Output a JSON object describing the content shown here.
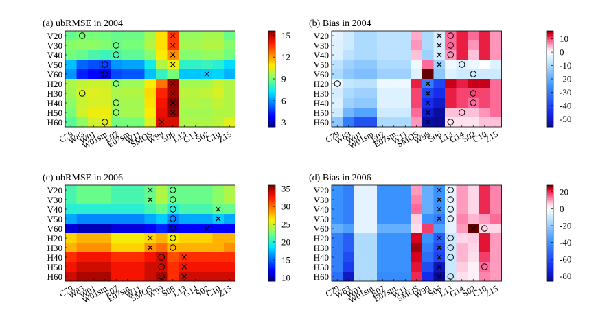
{
  "figure": {
    "rows": [
      "V20",
      "V30",
      "V40",
      "V50",
      "V60",
      "H20",
      "H30",
      "H40",
      "H50",
      "H60"
    ],
    "columns": [
      "C79",
      "W83",
      "W01",
      "W01sm",
      "E07",
      "E07sm",
      "W11",
      "SMOS",
      "W99",
      "S06",
      "L13",
      "G14",
      "S02",
      "C10",
      "Z15"
    ]
  },
  "chart_data": [
    {
      "type": "heatmap",
      "title": "(a) ubRMSE in 2004",
      "colorbar_ticks": [
        3,
        6,
        9,
        12,
        15
      ],
      "vmin": 2.4,
      "vmax": 15.6,
      "colormap": "jet",
      "values": [
        [
          8.7,
          9.0,
          9.0,
          8.9,
          8.7,
          8.8,
          8.8,
          9.6,
          11.0,
          13.5,
          9.4,
          9.4,
          9.6,
          9.6,
          8.8
        ],
        [
          9.2,
          9.3,
          9.3,
          9.1,
          8.8,
          9.0,
          9.0,
          9.8,
          11.0,
          13.5,
          9.6,
          9.6,
          9.8,
          9.8,
          9.2
        ],
        [
          8.9,
          8.7,
          8.3,
          8.1,
          8.3,
          8.6,
          8.6,
          9.2,
          10.8,
          12.2,
          9.2,
          9.2,
          9.4,
          9.4,
          8.9
        ],
        [
          6.6,
          5.3,
          5.0,
          4.8,
          6.0,
          6.2,
          6.2,
          7.5,
          9.8,
          10.6,
          7.9,
          7.9,
          8.1,
          7.8,
          7.0
        ],
        [
          6.0,
          4.3,
          3.9,
          3.6,
          4.9,
          5.1,
          5.1,
          6.6,
          8.0,
          9.0,
          6.7,
          6.7,
          6.8,
          6.9,
          6.4
        ],
        [
          9.7,
          10.0,
          10.1,
          10.1,
          9.3,
          9.5,
          9.5,
          10.8,
          12.6,
          15.3,
          9.6,
          9.6,
          9.6,
          10.1,
          9.8
        ],
        [
          9.6,
          10.2,
          10.4,
          10.3,
          9.7,
          9.8,
          9.8,
          11.1,
          13.8,
          15.2,
          9.9,
          9.9,
          10.0,
          10.3,
          9.8
        ],
        [
          9.3,
          10.1,
          10.3,
          10.3,
          9.5,
          9.6,
          9.6,
          11.0,
          14.1,
          15.6,
          9.8,
          9.8,
          9.7,
          10.0,
          9.8
        ],
        [
          9.0,
          10.2,
          10.6,
          10.6,
          9.4,
          9.6,
          9.6,
          10.8,
          14.3,
          15.4,
          9.6,
          9.6,
          9.6,
          9.8,
          9.8
        ],
        [
          8.5,
          9.3,
          10.2,
          10.4,
          8.9,
          9.0,
          9.0,
          10.4,
          14.5,
          14.5,
          9.7,
          9.7,
          9.7,
          9.9,
          10.4
        ]
      ],
      "x_markers": [
        [
          0,
          9
        ],
        [
          1,
          9
        ],
        [
          2,
          9
        ],
        [
          3,
          9
        ],
        [
          4,
          12
        ],
        [
          5,
          9
        ],
        [
          6,
          9
        ],
        [
          7,
          9
        ],
        [
          8,
          9
        ],
        [
          9,
          8
        ]
      ],
      "o_markers": [
        [
          0,
          1
        ],
        [
          1,
          4
        ],
        [
          2,
          4
        ],
        [
          3,
          3
        ],
        [
          4,
          3
        ],
        [
          5,
          4
        ],
        [
          6,
          1
        ],
        [
          7,
          4
        ],
        [
          8,
          4
        ],
        [
          9,
          3
        ]
      ]
    },
    {
      "type": "heatmap",
      "title": "(b) Bias in 2004",
      "colorbar_ticks": [
        10,
        0,
        -10,
        -20,
        -30,
        -40,
        -50
      ],
      "vmin": -56,
      "vmax": 16,
      "colormap": "blue-white-red",
      "values": [
        [
          -3,
          -6,
          -10,
          -10,
          -8,
          -8,
          -8,
          5,
          -10,
          -5,
          8,
          12,
          8,
          12,
          6
        ],
        [
          -4,
          -6,
          -10,
          -10,
          -8,
          -8,
          -8,
          6,
          -10,
          -5,
          8,
          12,
          6,
          12,
          6
        ],
        [
          -4,
          -8,
          -10,
          -10,
          -8,
          -8,
          -8,
          4,
          -12,
          -5,
          6,
          12,
          4,
          12,
          6
        ],
        [
          -8,
          -12,
          -14,
          -14,
          -10,
          -10,
          -10,
          -2,
          8,
          -12,
          -2,
          -4,
          -2,
          0,
          -4
        ],
        [
          -10,
          -14,
          -16,
          -16,
          -12,
          -12,
          -12,
          -4,
          16,
          -14,
          -4,
          -6,
          -6,
          -6,
          -6
        ],
        [
          -2,
          -7,
          -8,
          -8,
          -2,
          -2,
          -2,
          12,
          -30,
          -40,
          14,
          12,
          14,
          14,
          8
        ],
        [
          -5,
          -10,
          -12,
          -12,
          -4,
          -4,
          -4,
          10,
          -40,
          -45,
          12,
          10,
          10,
          10,
          8
        ],
        [
          -4,
          -12,
          -14,
          -14,
          -4,
          -4,
          -4,
          10,
          -45,
          -50,
          12,
          10,
          8,
          10,
          8
        ],
        [
          -6,
          -18,
          -22,
          -22,
          -6,
          -6,
          -6,
          8,
          -50,
          -55,
          4,
          4,
          4,
          6,
          8
        ],
        [
          -14,
          -30,
          -38,
          -38,
          -10,
          -10,
          -10,
          6,
          -55,
          -56,
          2,
          2,
          2,
          4,
          4
        ]
      ],
      "x_markers": [
        [
          0,
          9
        ],
        [
          1,
          9
        ],
        [
          2,
          9
        ],
        [
          3,
          9
        ],
        [
          5,
          8
        ],
        [
          6,
          8
        ],
        [
          7,
          8
        ],
        [
          8,
          8
        ],
        [
          9,
          8
        ]
      ],
      "o_markers": [
        [
          0,
          10
        ],
        [
          1,
          10
        ],
        [
          2,
          10
        ],
        [
          3,
          11
        ],
        [
          4,
          12
        ],
        [
          5,
          0
        ],
        [
          6,
          12
        ],
        [
          7,
          12
        ],
        [
          8,
          11
        ],
        [
          9,
          10
        ]
      ]
    },
    {
      "type": "heatmap",
      "title": "(c) ubRMSE in 2006",
      "colorbar_ticks": [
        10,
        15,
        20,
        25,
        30,
        35
      ],
      "vmin": 9,
      "vmax": 36,
      "colormap": "jet",
      "values": [
        [
          21,
          22,
          22,
          22,
          21,
          21,
          21,
          22,
          24,
          22,
          22,
          22,
          22,
          23,
          24
        ],
        [
          21,
          22,
          22,
          22,
          21,
          21,
          21,
          22,
          24,
          22,
          22,
          22,
          22,
          23,
          24
        ],
        [
          20,
          20,
          20,
          20,
          20,
          20,
          20,
          21,
          22,
          20,
          21,
          21,
          21,
          22,
          22
        ],
        [
          17,
          16,
          16,
          16,
          16,
          16,
          16,
          17,
          18,
          16,
          17,
          17,
          17,
          18,
          17
        ],
        [
          11,
          10,
          10,
          10,
          11,
          11,
          11,
          12,
          13,
          11,
          12,
          12,
          12,
          12,
          12
        ],
        [
          27,
          28,
          28,
          28,
          26,
          26,
          26,
          27,
          28,
          26,
          27,
          27,
          27,
          28,
          28
        ],
        [
          28,
          29,
          29,
          29,
          27,
          27,
          27,
          29,
          30,
          28,
          28,
          28,
          28,
          28,
          29
        ],
        [
          32,
          33,
          33,
          33,
          32,
          32,
          32,
          33,
          34,
          31,
          32,
          32,
          32,
          32,
          32
        ],
        [
          33,
          34,
          34,
          34,
          33,
          33,
          33,
          34,
          34,
          32,
          33,
          33,
          33,
          33,
          33
        ],
        [
          34,
          35,
          35,
          35,
          33,
          33,
          33,
          34,
          35,
          32,
          34,
          34,
          34,
          34,
          34
        ]
      ],
      "x_markers": [
        [
          0,
          7
        ],
        [
          1,
          7
        ],
        [
          2,
          13
        ],
        [
          3,
          13
        ],
        [
          4,
          12
        ],
        [
          5,
          7
        ],
        [
          6,
          7
        ],
        [
          7,
          10
        ],
        [
          8,
          10
        ],
        [
          9,
          10
        ]
      ],
      "o_markers": [
        [
          0,
          9
        ],
        [
          1,
          9
        ],
        [
          2,
          9
        ],
        [
          3,
          9
        ],
        [
          4,
          9
        ],
        [
          5,
          9
        ],
        [
          6,
          9
        ],
        [
          7,
          8
        ],
        [
          8,
          8
        ],
        [
          9,
          8
        ]
      ]
    },
    {
      "type": "heatmap",
      "title": "(d) Bias in 2006",
      "colorbar_ticks": [
        20,
        0,
        -20,
        -40,
        -60,
        -80
      ],
      "vmin": -86,
      "vmax": 28,
      "colormap": "blue-white-red",
      "values": [
        [
          -40,
          -45,
          -5,
          -5,
          -40,
          -40,
          -40,
          10,
          -30,
          -40,
          -5,
          10,
          5,
          20,
          12
        ],
        [
          -40,
          -45,
          -5,
          -5,
          -40,
          -40,
          -40,
          12,
          -30,
          -40,
          -5,
          10,
          5,
          20,
          12
        ],
        [
          -40,
          -45,
          -5,
          -5,
          -40,
          -40,
          -40,
          14,
          -30,
          -40,
          -5,
          10,
          5,
          20,
          12
        ],
        [
          -40,
          -45,
          -5,
          -5,
          -40,
          -40,
          -40,
          6,
          -40,
          -45,
          -5,
          12,
          8,
          10,
          14
        ],
        [
          -30,
          -35,
          -5,
          -5,
          -30,
          -30,
          -30,
          4,
          18,
          -35,
          -5,
          10,
          28,
          5,
          5
        ],
        [
          -45,
          -55,
          -15,
          -15,
          -40,
          -40,
          -40,
          24,
          -40,
          -55,
          -10,
          5,
          6,
          22,
          10
        ],
        [
          -45,
          -55,
          -15,
          -15,
          -40,
          -40,
          -40,
          26,
          -45,
          -60,
          -10,
          8,
          5,
          22,
          10
        ],
        [
          -45,
          -60,
          -15,
          -15,
          -40,
          -40,
          -40,
          24,
          -50,
          -62,
          -10,
          8,
          4,
          18,
          10
        ],
        [
          -45,
          -65,
          -15,
          -15,
          -40,
          -40,
          -40,
          22,
          -60,
          -80,
          -10,
          6,
          2,
          14,
          10
        ],
        [
          -50,
          -78,
          -15,
          -15,
          -42,
          -42,
          -42,
          20,
          -70,
          -86,
          -10,
          4,
          2,
          12,
          10
        ]
      ],
      "x_markers": [
        [
          0,
          9
        ],
        [
          1,
          9
        ],
        [
          2,
          9
        ],
        [
          3,
          9
        ],
        [
          4,
          12
        ],
        [
          5,
          9
        ],
        [
          6,
          9
        ],
        [
          7,
          9
        ],
        [
          8,
          9
        ],
        [
          9,
          9
        ]
      ],
      "o_markers": [
        [
          0,
          10
        ],
        [
          1,
          10
        ],
        [
          2,
          10
        ],
        [
          3,
          10
        ],
        [
          4,
          13
        ],
        [
          5,
          10
        ],
        [
          6,
          10
        ],
        [
          7,
          10
        ],
        [
          8,
          13
        ],
        [
          9,
          10
        ]
      ]
    }
  ]
}
